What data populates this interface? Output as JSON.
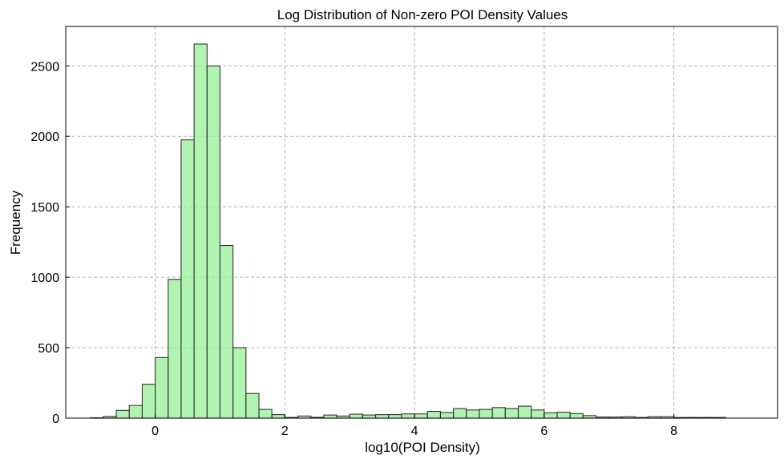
{
  "chart_data": {
    "type": "bar",
    "title": "Log Distribution of Non-zero POI Density Values",
    "xlabel": "log10(POI Density)",
    "ylabel": "Frequency",
    "xlim": [
      -1.38,
      9.6
    ],
    "ylim": [
      0,
      2780
    ],
    "xticks": [
      0,
      2,
      4,
      6,
      8
    ],
    "yticks": [
      0,
      500,
      1000,
      1500,
      2000,
      2500
    ],
    "grid": true,
    "bar_color": "#90ee90",
    "edge_color": "#333333",
    "bin_start": -1.0,
    "bin_width": 0.2,
    "values": [
      3,
      12,
      55,
      90,
      240,
      430,
      985,
      1975,
      2655,
      2500,
      1225,
      500,
      175,
      62,
      25,
      5,
      15,
      6,
      22,
      15,
      28,
      22,
      25,
      25,
      30,
      30,
      48,
      40,
      68,
      58,
      62,
      75,
      68,
      85,
      58,
      38,
      42,
      32,
      18,
      8,
      8,
      10,
      5,
      10,
      10,
      5,
      5,
      5,
      5
    ]
  }
}
